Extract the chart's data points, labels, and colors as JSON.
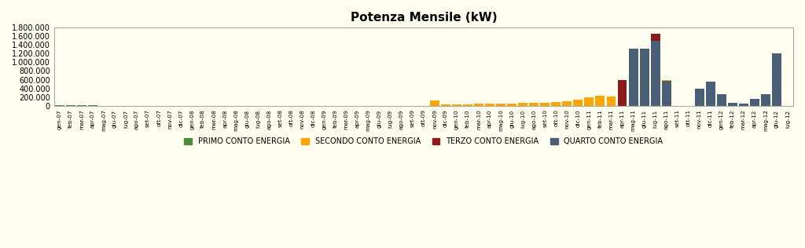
{
  "title": "Potenza Mensile (kW)",
  "background_color": "#FFFFF0",
  "categories": [
    "gen-07",
    "feb-07",
    "mar-07",
    "apr-07",
    "mag-07",
    "giu-07",
    "lug-07",
    "ago-07",
    "set-07",
    "ott-07",
    "nov-07",
    "dic-07",
    "gen-08",
    "feb-08",
    "mar-08",
    "apr-08",
    "mag-08",
    "giu-08",
    "lug-08",
    "ago-08",
    "set-08",
    "ott-08",
    "nov-08",
    "dic-08",
    "gen-09",
    "feb-09",
    "mar-09",
    "apr-09",
    "mag-09",
    "giu-09",
    "lug-09",
    "ago-09",
    "set-09",
    "ott-09",
    "nov-09",
    "dic-09",
    "gen-10",
    "feb-10",
    "mar-10",
    "apr-10",
    "mag-10",
    "giu-10",
    "lug-10",
    "ago-10",
    "set-10",
    "ott-10",
    "nov-10",
    "dic-10",
    "gen-11",
    "feb-11",
    "mar-11",
    "apr-11",
    "mag-11",
    "giu-11",
    "lug-11",
    "ago-11",
    "set-11",
    "ott-11",
    "nov-11",
    "dic-11",
    "gen-12",
    "feb-12",
    "mar-12",
    "apr-12",
    "mag-12",
    "giu-12",
    "lug-12"
  ],
  "series": {
    "PRIMO CONTO ENERGIA": {
      "color": "#4E8A3E",
      "values": [
        3000,
        3000,
        2000,
        2000,
        1000,
        1000,
        1000,
        1000,
        1000,
        1000,
        1000,
        1000,
        1000,
        1000,
        1000,
        1000,
        1000,
        1000,
        1000,
        1000,
        1000,
        1000,
        1000,
        1000,
        0,
        0,
        0,
        0,
        0,
        0,
        0,
        0,
        0,
        0,
        0,
        0,
        0,
        0,
        0,
        0,
        0,
        0,
        0,
        0,
        0,
        0,
        0,
        0,
        0,
        0,
        0,
        0,
        0,
        0,
        0,
        0,
        0,
        0,
        0,
        0,
        0,
        0,
        0,
        0,
        0,
        0,
        0
      ]
    },
    "SECONDO CONTO ENERGIA": {
      "color": "#FFA500",
      "values": [
        0,
        0,
        0,
        0,
        0,
        0,
        0,
        0,
        0,
        0,
        0,
        0,
        0,
        0,
        0,
        0,
        0,
        0,
        0,
        0,
        0,
        0,
        0,
        0,
        0,
        0,
        0,
        0,
        0,
        0,
        0,
        0,
        0,
        0,
        120000,
        25000,
        25000,
        30000,
        40000,
        50000,
        55000,
        55000,
        60000,
        65000,
        70000,
        80000,
        100000,
        130000,
        200000,
        230000,
        210000,
        600000,
        620000,
        620000,
        940000,
        600000,
        0,
        0,
        0,
        0,
        0,
        0,
        0,
        0,
        0,
        0,
        0
      ]
    },
    "TERZO CONTO ENERGIA": {
      "color": "#8B1A1A",
      "values": [
        0,
        0,
        0,
        0,
        0,
        0,
        0,
        0,
        0,
        0,
        0,
        0,
        0,
        0,
        0,
        0,
        0,
        0,
        0,
        0,
        0,
        0,
        0,
        0,
        0,
        0,
        0,
        0,
        0,
        0,
        0,
        0,
        0,
        0,
        0,
        0,
        0,
        0,
        0,
        0,
        0,
        0,
        0,
        0,
        0,
        0,
        0,
        0,
        0,
        0,
        0,
        600000,
        0,
        0,
        1660000,
        0,
        0,
        0,
        0,
        0,
        0,
        0,
        0,
        0,
        0,
        0,
        0
      ]
    },
    "QUARTO CONTO ENERGIA": {
      "color": "#4A5F75",
      "values": [
        0,
        0,
        0,
        0,
        0,
        0,
        0,
        0,
        0,
        0,
        0,
        0,
        0,
        0,
        0,
        0,
        0,
        0,
        0,
        0,
        0,
        0,
        0,
        0,
        0,
        0,
        0,
        0,
        0,
        0,
        0,
        0,
        0,
        0,
        0,
        0,
        0,
        0,
        0,
        0,
        0,
        0,
        0,
        0,
        0,
        0,
        0,
        0,
        0,
        0,
        0,
        0,
        1310000,
        1320000,
        1490000,
        570000,
        0,
        0,
        390000,
        555000,
        270000,
        60000,
        40000,
        155000,
        260000,
        1210000,
        0
      ]
    }
  },
  "ylim": [
    0,
    1800000
  ],
  "yticks": [
    0,
    200000,
    400000,
    600000,
    800000,
    1000000,
    1200000,
    1400000,
    1600000,
    1800000
  ],
  "ytick_labels": [
    "0",
    "200.000",
    "400.000",
    "600.000",
    "800.000",
    "1.000.000",
    "1.200.000",
    "1.400.000",
    "1.600.000",
    "1.800.000"
  ],
  "legend_labels": [
    "PRIMO CONTO ENERGIA",
    "SECONDO CONTO ENERGIA",
    "TERZO CONTO ENERGIA",
    "QUARTO CONTO ENERGIA"
  ],
  "legend_colors": [
    "#4E8A3E",
    "#FFA500",
    "#8B1A1A",
    "#4A5F75"
  ]
}
